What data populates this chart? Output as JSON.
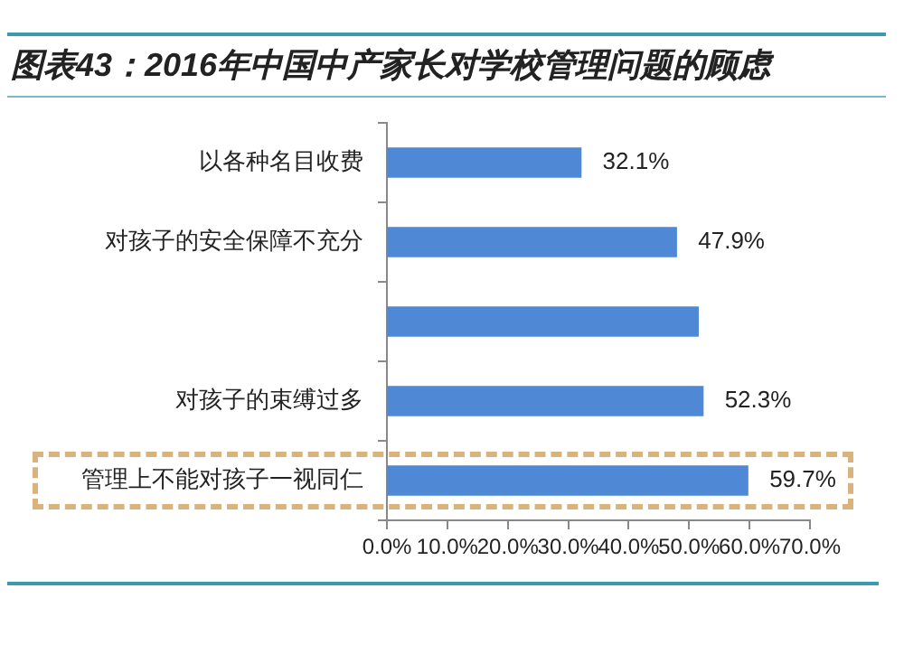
{
  "chart_data": {
    "type": "bar",
    "orientation": "horizontal",
    "title": "图表43：2016年中国中产家长对学校管理问题的顾虑",
    "categories": [
      "以各种名目收费",
      "对孩子的安全保障不充分",
      null,
      "对孩子的束缚过多",
      "管理上不能对孩子一视同仁"
    ],
    "values": [
      32.1,
      47.9,
      51.5,
      52.3,
      59.7
    ],
    "value_labels": [
      "32.1%",
      "47.9%",
      null,
      "52.3%",
      "59.7%"
    ],
    "color": "#4f88d4",
    "xlim": [
      0,
      70
    ],
    "xticks": [
      {
        "value": 0,
        "label": "0.0%"
      },
      {
        "value": 10,
        "label": "10.0%"
      },
      {
        "value": 20,
        "label": "20.0%"
      },
      {
        "value": 30,
        "label": "30.0%"
      },
      {
        "value": 40,
        "label": "40.0%"
      },
      {
        "value": 50,
        "label": "50.0%"
      },
      {
        "value": 60,
        "label": "60.0%"
      },
      {
        "value": 70,
        "label": "70.0%"
      }
    ],
    "grid": false,
    "legend": false
  }
}
